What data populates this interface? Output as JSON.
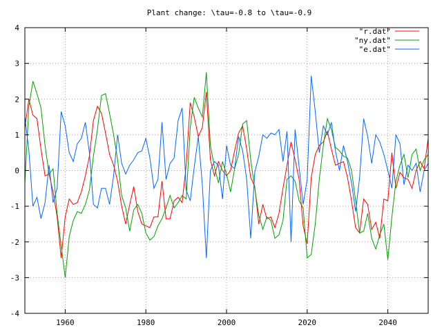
{
  "chart_data": {
    "type": "line",
    "title": "Plant change: \\tau=-0.8 to \\tau=-0.9",
    "xlabel": "",
    "ylabel": "",
    "xlim": [
      1950,
      2050
    ],
    "ylim": [
      -4,
      4
    ],
    "xticks": [
      1960,
      1980,
      2000,
      2020,
      2040
    ],
    "xtick_labels": [
      "1960",
      "1980",
      "2000",
      "2020",
      "2040"
    ],
    "yticks": [
      -4,
      -3,
      -2,
      -1,
      0,
      1,
      2,
      3,
      4
    ],
    "ytick_labels": [
      "-4",
      "-3",
      "-2",
      "-1",
      "0",
      "1",
      "2",
      "3",
      "4"
    ],
    "grid": true,
    "legend": "top-right",
    "x_start": 1950,
    "x_step": 1,
    "series": [
      {
        "name": "\"r.dat\"",
        "color": "#ff0000",
        "values": [
          1.2,
          2.0,
          1.55,
          1.45,
          0.6,
          -0.15,
          -0.1,
          -0.6,
          -1.3,
          -2.45,
          -1.3,
          -0.8,
          -0.95,
          -0.9,
          -0.6,
          -0.15,
          0.4,
          1.4,
          1.8,
          1.6,
          1.05,
          0.45,
          0.15,
          -0.3,
          -1.0,
          -1.5,
          -0.95,
          -0.45,
          -1.15,
          -1.5,
          -1.55,
          -1.6,
          -1.3,
          -1.3,
          -0.3,
          -1.35,
          -1.35,
          -0.85,
          -0.75,
          -0.9,
          0.15,
          1.9,
          1.5,
          0.95,
          1.2,
          2.2,
          0.3,
          -0.15,
          0.25,
          0.0,
          -0.15,
          0.0,
          0.55,
          1.05,
          1.25,
          0.6,
          -0.2,
          -0.45,
          -1.5,
          -0.95,
          -1.35,
          -1.3,
          -1.6,
          -1.2,
          -0.5,
          0.15,
          0.8,
          0.3,
          -0.25,
          -1.55,
          -2.05,
          -0.2,
          0.45,
          0.7,
          0.8,
          1.1,
          0.6,
          0.15,
          0.2,
          0.25,
          -0.2,
          -0.85,
          -1.6,
          -1.75,
          -0.8,
          -0.95,
          -1.65,
          -1.45,
          -1.9,
          -0.8,
          -0.85,
          0.5,
          -0.5,
          -0.05,
          -0.2,
          -0.25,
          -0.5,
          0.0,
          0.25,
          0.05,
          0.9
        ]
      },
      {
        "name": "\"ny.dat\"",
        "color": "#00a000",
        "values": [
          -0.35,
          1.8,
          2.5,
          2.15,
          1.75,
          0.7,
          -0.1,
          0.05,
          -1.2,
          -2.1,
          -3.0,
          -1.85,
          -1.4,
          -1.15,
          -1.2,
          -0.95,
          -0.55,
          0.4,
          1.15,
          2.1,
          2.15,
          1.6,
          1.0,
          0.3,
          -0.7,
          -1.05,
          -1.7,
          -1.1,
          -0.95,
          -1.2,
          -1.75,
          -1.95,
          -1.85,
          -1.55,
          -1.35,
          -1.05,
          -0.7,
          -1.05,
          -0.9,
          -0.7,
          -0.8,
          1.2,
          2.05,
          1.75,
          1.5,
          2.75,
          0.7,
          0.1,
          -0.35,
          0.25,
          -0.1,
          -0.6,
          0.05,
          0.45,
          1.3,
          1.4,
          0.3,
          -0.5,
          -1.25,
          -1.65,
          -1.3,
          -1.4,
          -1.9,
          -1.8,
          -1.4,
          -0.25,
          -0.15,
          -0.3,
          -0.85,
          -1.05,
          -2.45,
          -2.35,
          -1.5,
          -0.25,
          0.7,
          1.45,
          1.15,
          0.65,
          0.55,
          0.4,
          0.35,
          0.0,
          -0.85,
          -1.75,
          -1.7,
          -1.2,
          -1.9,
          -2.2,
          -1.8,
          -1.5,
          -2.5,
          -1.3,
          -0.3,
          0.15,
          0.45,
          -0.2,
          0.45,
          0.6,
          0.0,
          0.3,
          0.45
        ]
      },
      {
        "name": "\"e.dat\"",
        "color": "#0066ff",
        "values": [
          1.5,
          0.55,
          -1.0,
          -0.75,
          -1.35,
          -0.9,
          0.15,
          -0.9,
          -0.5,
          1.65,
          1.25,
          0.5,
          0.25,
          0.75,
          0.9,
          1.35,
          0.5,
          -0.95,
          -1.05,
          -0.5,
          -0.5,
          -0.95,
          -0.15,
          1.0,
          0.2,
          -0.1,
          0.15,
          0.3,
          0.5,
          0.55,
          0.9,
          0.35,
          -0.5,
          -0.25,
          1.35,
          -0.25,
          0.2,
          0.35,
          1.4,
          1.75,
          -0.55,
          -0.85,
          0.1,
          0.95,
          -0.4,
          -2.45,
          0.0,
          0.25,
          0.15,
          -0.8,
          0.7,
          0.15,
          0.05,
          0.95,
          0.55,
          -0.25,
          -1.9,
          -0.05,
          0.4,
          1.0,
          0.9,
          1.05,
          1.0,
          1.15,
          0.25,
          1.1,
          -2.0,
          1.15,
          0.1,
          -0.95,
          -0.25,
          2.65,
          1.65,
          0.5,
          1.25,
          1.0,
          1.35,
          0.55,
          0.0,
          0.7,
          0.25,
          -0.35,
          -1.15,
          -0.2,
          1.45,
          0.95,
          0.2,
          1.0,
          0.8,
          0.45,
          0.0,
          -0.5,
          1.0,
          0.75,
          -0.4,
          0.15,
          0.0,
          0.2,
          -0.6,
          0.0,
          0.2
        ]
      }
    ]
  }
}
